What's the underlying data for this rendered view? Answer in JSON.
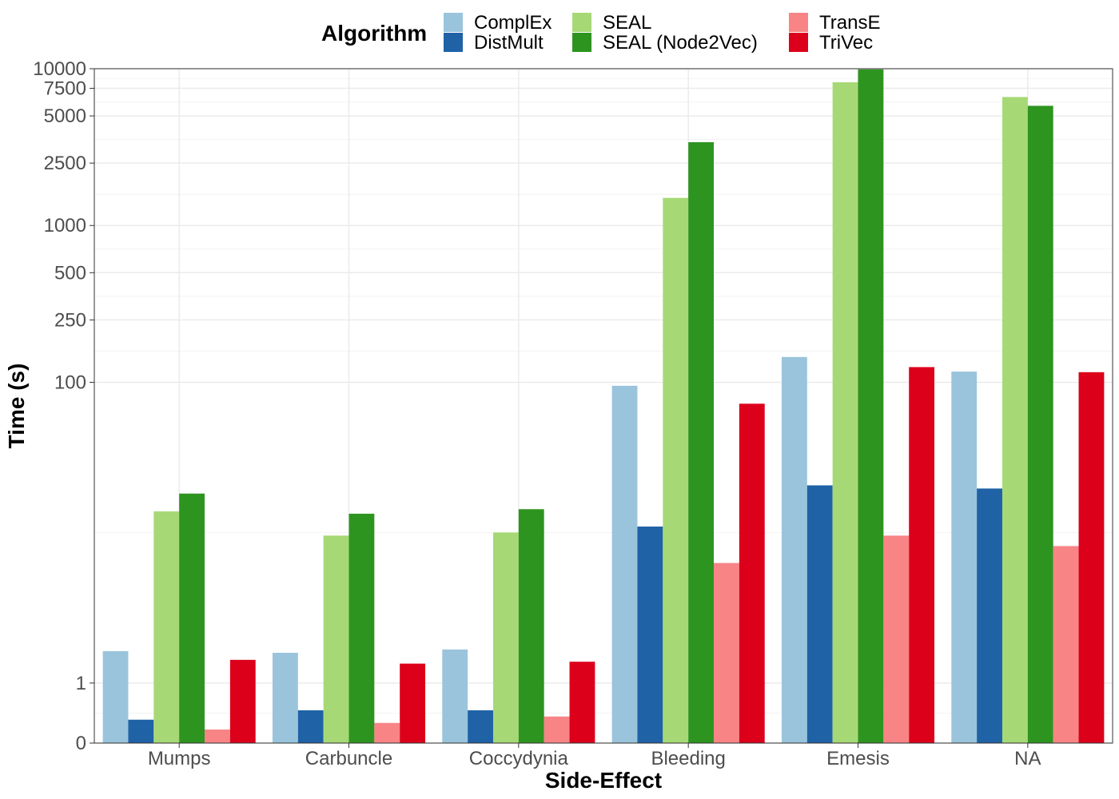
{
  "chart_data": {
    "type": "bar",
    "xlabel": "Side-Effect",
    "ylabel": "Time (s)",
    "y_scale": "pseudo-log",
    "ylim": [
      0,
      10000
    ],
    "y_ticks": [
      0,
      1,
      100,
      250,
      500,
      1000,
      2500,
      5000,
      7500,
      10000
    ],
    "y_tick_labels": [
      "0",
      "1",
      "100",
      "250",
      "500",
      "1000",
      "2500",
      "5000",
      "7500",
      "10000"
    ],
    "grid": true,
    "legend_title": "Algorithm",
    "legend_position": "top",
    "categories": [
      "Mumps",
      "Carbuncle",
      "Coccydynia",
      "Bleeding",
      "Emesis",
      "NA"
    ],
    "series": [
      {
        "name": "ComplEx",
        "color": "#9ac4dc",
        "values": [
          1.8,
          1.75,
          1.85,
          95,
          145,
          117
        ]
      },
      {
        "name": "DistMult",
        "color": "#1f62a6",
        "values": [
          0.35,
          0.5,
          0.5,
          12,
          22,
          21
        ]
      },
      {
        "name": "SEAL",
        "color": "#a6d976",
        "values": [
          15,
          10.5,
          11,
          1500,
          8200,
          6600
        ]
      },
      {
        "name": "SEAL (Node2Vec)",
        "color": "#2e9420",
        "values": [
          19.5,
          14.5,
          15.5,
          3400,
          9900,
          5800
        ]
      },
      {
        "name": "TransE",
        "color": "#f88486",
        "values": [
          0.2,
          0.3,
          0.4,
          7,
          10.5,
          9
        ]
      },
      {
        "name": "TriVec",
        "color": "#dc001b",
        "values": [
          1.55,
          1.45,
          1.5,
          73,
          125,
          116
        ]
      }
    ]
  }
}
